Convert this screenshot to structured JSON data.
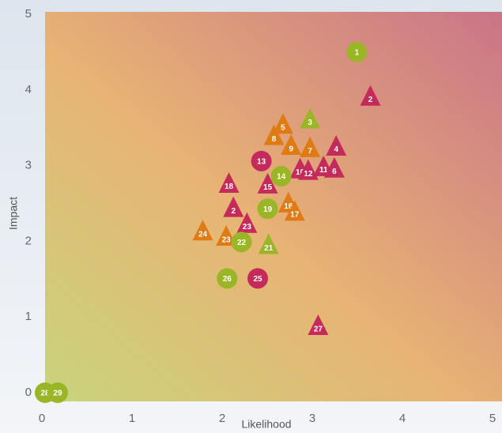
{
  "chart_data": {
    "type": "scatter",
    "x_label": "Likelihood",
    "y_label": "Impact",
    "xlim": [
      0,
      5
    ],
    "ylim": [
      0,
      5
    ],
    "xticks": [
      0,
      1,
      2,
      3,
      4,
      5
    ],
    "yticks": [
      0,
      1,
      2,
      3,
      4,
      5
    ],
    "colors": {
      "green": "#9ab526",
      "orange": "#e07b14",
      "crimson": "#c42a5a"
    },
    "points": [
      {
        "label": "1",
        "x": 3.46,
        "y": 4.5,
        "shape": "circle",
        "color": "green"
      },
      {
        "label": "2",
        "x": 3.61,
        "y": 3.9,
        "shape": "triangle",
        "color": "crimson"
      },
      {
        "label": "3",
        "x": 2.94,
        "y": 3.6,
        "shape": "triangle",
        "color": "green"
      },
      {
        "label": "5",
        "x": 2.64,
        "y": 3.53,
        "shape": "triangle",
        "color": "orange"
      },
      {
        "label": "8",
        "x": 2.54,
        "y": 3.38,
        "shape": "triangle",
        "color": "orange"
      },
      {
        "label": "9",
        "x": 2.73,
        "y": 3.25,
        "shape": "triangle",
        "color": "orange"
      },
      {
        "label": "7",
        "x": 2.94,
        "y": 3.22,
        "shape": "triangle",
        "color": "orange"
      },
      {
        "label": "4",
        "x": 3.23,
        "y": 3.24,
        "shape": "triangle",
        "color": "crimson"
      },
      {
        "label": "13",
        "x": 2.4,
        "y": 3.06,
        "shape": "circle",
        "color": "crimson"
      },
      {
        "label": "10",
        "x": 2.83,
        "y": 2.94,
        "shape": "triangle",
        "color": "crimson"
      },
      {
        "label": "12",
        "x": 2.92,
        "y": 2.92,
        "shape": "triangle",
        "color": "crimson"
      },
      {
        "label": "11",
        "x": 3.09,
        "y": 2.97,
        "shape": "triangle",
        "color": "crimson"
      },
      {
        "label": "6",
        "x": 3.21,
        "y": 2.95,
        "shape": "triangle",
        "color": "crimson"
      },
      {
        "label": "14",
        "x": 2.62,
        "y": 2.86,
        "shape": "circle",
        "color": "green"
      },
      {
        "label": "15",
        "x": 2.47,
        "y": 2.74,
        "shape": "triangle",
        "color": "crimson"
      },
      {
        "label": "18",
        "x": 2.04,
        "y": 2.75,
        "shape": "triangle",
        "color": "crimson"
      },
      {
        "label": "16",
        "x": 2.7,
        "y": 2.49,
        "shape": "triangle",
        "color": "orange"
      },
      {
        "label": "17",
        "x": 2.77,
        "y": 2.38,
        "shape": "triangle",
        "color": "orange"
      },
      {
        "label": "19",
        "x": 2.47,
        "y": 2.43,
        "shape": "circle",
        "color": "green"
      },
      {
        "label": "2",
        "x": 2.09,
        "y": 2.43,
        "shape": "triangle",
        "color": "crimson"
      },
      {
        "label": "23",
        "x": 2.24,
        "y": 2.22,
        "shape": "triangle",
        "color": "crimson"
      },
      {
        "label": "24",
        "x": 1.75,
        "y": 2.12,
        "shape": "triangle",
        "color": "orange"
      },
      {
        "label": "23",
        "x": 2.01,
        "y": 2.05,
        "shape": "triangle",
        "color": "orange"
      },
      {
        "label": "22",
        "x": 2.18,
        "y": 1.99,
        "shape": "circle",
        "color": "green"
      },
      {
        "label": "21",
        "x": 2.48,
        "y": 1.94,
        "shape": "triangle",
        "color": "green"
      },
      {
        "label": "26",
        "x": 2.02,
        "y": 1.51,
        "shape": "circle",
        "color": "green"
      },
      {
        "label": "25",
        "x": 2.36,
        "y": 1.51,
        "shape": "circle",
        "color": "crimson"
      },
      {
        "label": "27",
        "x": 3.03,
        "y": 0.87,
        "shape": "triangle",
        "color": "crimson"
      },
      {
        "label": "28",
        "x": 0.0,
        "y": 0.0,
        "shape": "circle",
        "color": "green"
      },
      {
        "label": "29",
        "x": 0.14,
        "y": 0.0,
        "shape": "circle",
        "color": "green"
      }
    ]
  }
}
